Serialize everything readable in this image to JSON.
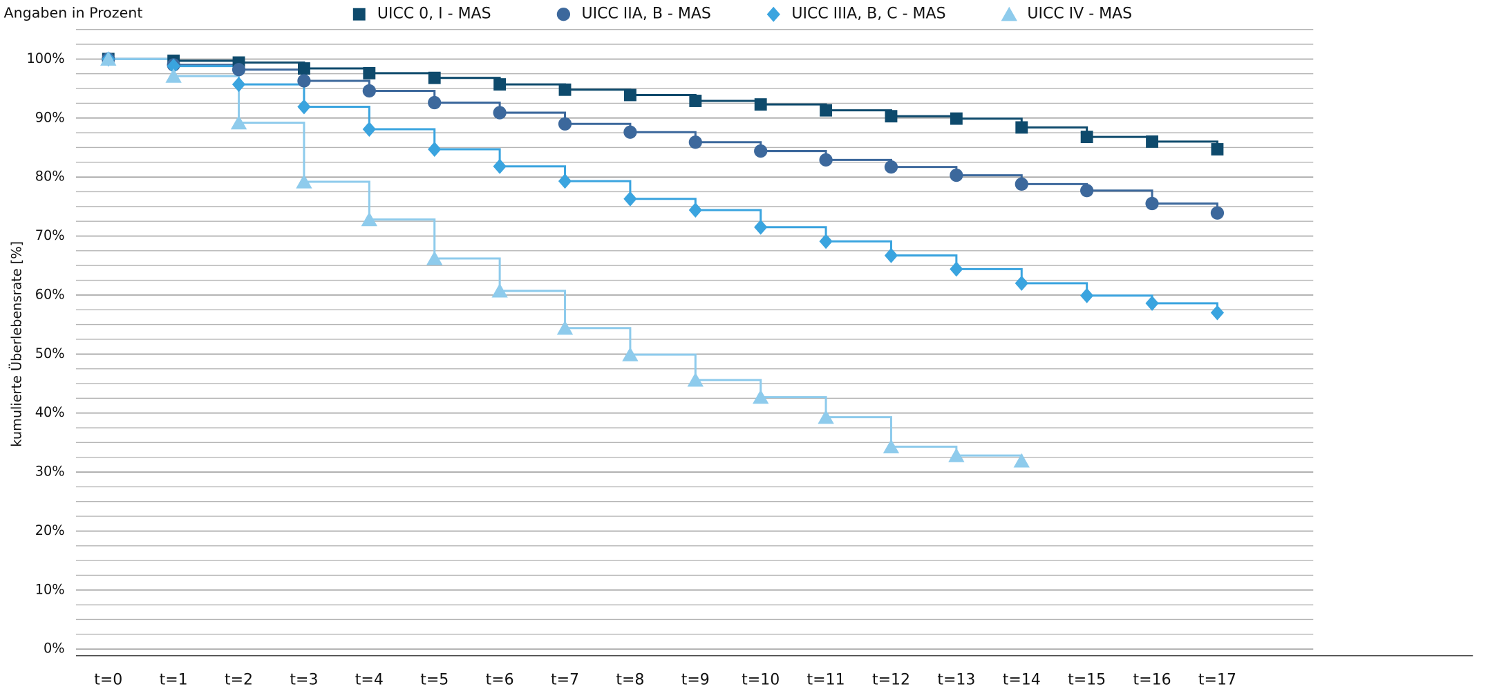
{
  "chart_data": {
    "type": "step",
    "title": "Angaben in Prozent",
    "ylabel": "kumulierte Überlebensrate [%]",
    "categories": [
      "t=0",
      "t=1",
      "t=2",
      "t=3",
      "t=4",
      "t=5",
      "t=6",
      "t=7",
      "t=8",
      "t=9",
      "t=10",
      "t=11",
      "t=12",
      "t=13",
      "t=14",
      "t=15",
      "t=16",
      "t=17"
    ],
    "ylim": [
      0,
      105
    ],
    "yticks": [
      {
        "value": 0,
        "label": "0%"
      },
      {
        "value": 10,
        "label": "10%"
      },
      {
        "value": 20,
        "label": "20%"
      },
      {
        "value": 30,
        "label": "30%"
      },
      {
        "value": 40,
        "label": "40%"
      },
      {
        "value": 50,
        "label": "50%"
      },
      {
        "value": 60,
        "label": "60%"
      },
      {
        "value": 70,
        "label": "70%"
      },
      {
        "value": 80,
        "label": "80%"
      },
      {
        "value": 90,
        "label": "90%"
      },
      {
        "value": 100,
        "label": "100%"
      }
    ],
    "minor_yticks": [
      2.5,
      5,
      7.5,
      12.5,
      15,
      17.5,
      22.5,
      25,
      27.5,
      32.5,
      35,
      37.5,
      42.5,
      45,
      47.5,
      52.5,
      55,
      57.5,
      62.5,
      65,
      67.5,
      72.5,
      75,
      77.5,
      82.5,
      85,
      87.5,
      92.5,
      95,
      97.5,
      102.5,
      105
    ],
    "grid": true,
    "legend": "top",
    "series": [
      {
        "name": "UICC 0, I - MAS",
        "color": "#0e4a6c",
        "marker": "square",
        "values": [
          100,
          99.7,
          99.4,
          98.4,
          97.6,
          96.8,
          95.7,
          94.8,
          93.9,
          92.9,
          92.3,
          91.3,
          90.3,
          89.9,
          88.4,
          86.8,
          86.0,
          84.7
        ]
      },
      {
        "name": "UICC IIA, B - MAS",
        "color": "#3c689c",
        "marker": "circle",
        "values": [
          100,
          99.0,
          98.2,
          96.3,
          94.6,
          92.6,
          90.9,
          89.0,
          87.6,
          85.9,
          84.4,
          82.9,
          81.7,
          80.3,
          78.8,
          77.7,
          75.5,
          73.9
        ]
      },
      {
        "name": "UICC IIIA, B, C - MAS",
        "color": "#3aa4df",
        "marker": "diamond",
        "values": [
          100,
          98.8,
          95.7,
          91.9,
          88.1,
          84.7,
          81.8,
          79.3,
          76.3,
          74.4,
          71.5,
          69.1,
          66.7,
          64.4,
          62.0,
          59.9,
          58.6,
          57.0
        ]
      },
      {
        "name": "UICC IV - MAS",
        "color": "#8ecbec",
        "marker": "triangle",
        "values": [
          100,
          97.1,
          89.2,
          79.2,
          72.8,
          66.2,
          60.7,
          54.4,
          49.9,
          45.6,
          42.7,
          39.3,
          34.3,
          32.8,
          31.9,
          null,
          null,
          null
        ]
      }
    ]
  }
}
